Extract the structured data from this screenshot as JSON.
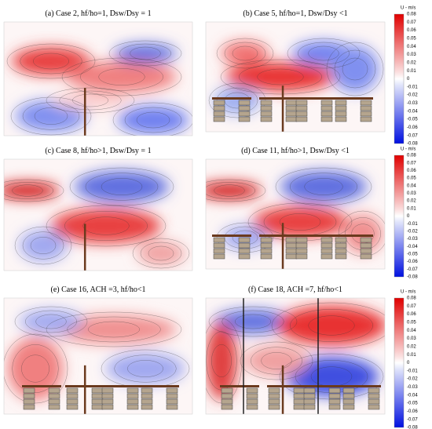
{
  "panels": [
    {
      "title": "(a) Case 2, hf/ho=1, Dsw/Dsy = 1"
    },
    {
      "title": "(b) Case 5, hf/ho=1, Dsw/Dsy <1"
    },
    {
      "title": "(c) Case 8, hf/ho>1, Dsw/Dsy = 1"
    },
    {
      "title": "(d) Case 11, hf/ho>1, Dsw/Dsy <1"
    },
    {
      "title": "(e) Case 16, ACH =3, hf/ho<1"
    },
    {
      "title": "(f) Case 18, ACH =7, hf/ho<1"
    }
  ],
  "colorbar": {
    "label": "U - m/s",
    "ticks": [
      "0.08",
      "0.07",
      "0.06",
      "0.05",
      "0.04",
      "0.03",
      "0.02",
      "0.01",
      "0",
      "-0.01",
      "-0.02",
      "-0.03",
      "-0.04",
      "-0.05",
      "-0.06",
      "-0.07",
      "-0.08"
    ]
  }
}
